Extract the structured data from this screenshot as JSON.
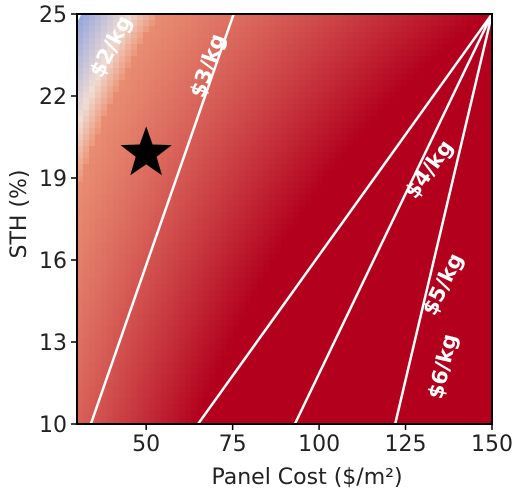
{
  "chart_data": {
    "type": "heatmap",
    "xlabel": "Panel Cost ($/m²)",
    "ylabel": "STH (%)",
    "xlim": [
      30,
      150
    ],
    "ylim": [
      10,
      25
    ],
    "x_ticks": [
      50,
      75,
      100,
      125,
      150
    ],
    "y_ticks": [
      10,
      13,
      16,
      19,
      22,
      25
    ],
    "colormap": {
      "low_color": "#3b6fe6",
      "mid_color": "#f0dcd3",
      "high_color": "#b2001d",
      "z_range": [
        1.8,
        7.0
      ]
    },
    "contours": [
      {
        "level": 2,
        "label": "$2/kg",
        "x_at_ymax": 30.9,
        "x_at_ymin": -30,
        "label_x": 40,
        "label_y": 23.8
      },
      {
        "level": 3,
        "label": "$3/kg",
        "x_at_ymax": 75.3,
        "x_at_ymin": 34,
        "label_x": 68,
        "label_y": 23.1
      },
      {
        "level": 4,
        "label": "$4/kg",
        "x_at_ymax": 150,
        "x_at_ymin": 65,
        "label_x": 132,
        "label_y": 19.3
      },
      {
        "level": 5,
        "label": "$5/kg",
        "x_at_ymax": 150,
        "x_at_ymin": 93,
        "label_x": 136,
        "label_y": 15.1
      },
      {
        "level": 6,
        "label": "$6/kg",
        "x_at_ymax": 150,
        "x_at_ymin": 122,
        "label_x": 136,
        "label_y": 12.1
      }
    ],
    "markers": [
      {
        "shape": "star",
        "x": 50,
        "y": 19.9,
        "color": "#000000"
      }
    ]
  }
}
